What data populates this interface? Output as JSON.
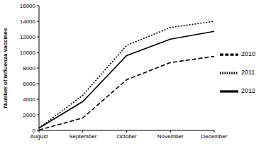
{
  "chart_data": {
    "type": "line",
    "y_label": "Number of influenza vaccines",
    "categories": [
      "August",
      "September",
      "October",
      "November",
      "December"
    ],
    "series": [
      {
        "name": "2010",
        "color": "#000000",
        "line_style": "dashed",
        "values": [
          50,
          1600,
          6500,
          8700,
          9500
        ]
      },
      {
        "name": "2011",
        "color": "#000000",
        "line_style": "dotted",
        "values": [
          300,
          4500,
          10900,
          13200,
          14000
        ]
      },
      {
        "name": "2012",
        "color": "#000000",
        "line_style": "solid",
        "values": [
          300,
          3700,
          9600,
          11700,
          12700
        ]
      }
    ],
    "ylim": [
      0,
      16000
    ],
    "yticks": [
      0,
      2000,
      4000,
      6000,
      8000,
      10000,
      12000,
      14000,
      16000
    ],
    "grid": false,
    "legend": "right"
  }
}
